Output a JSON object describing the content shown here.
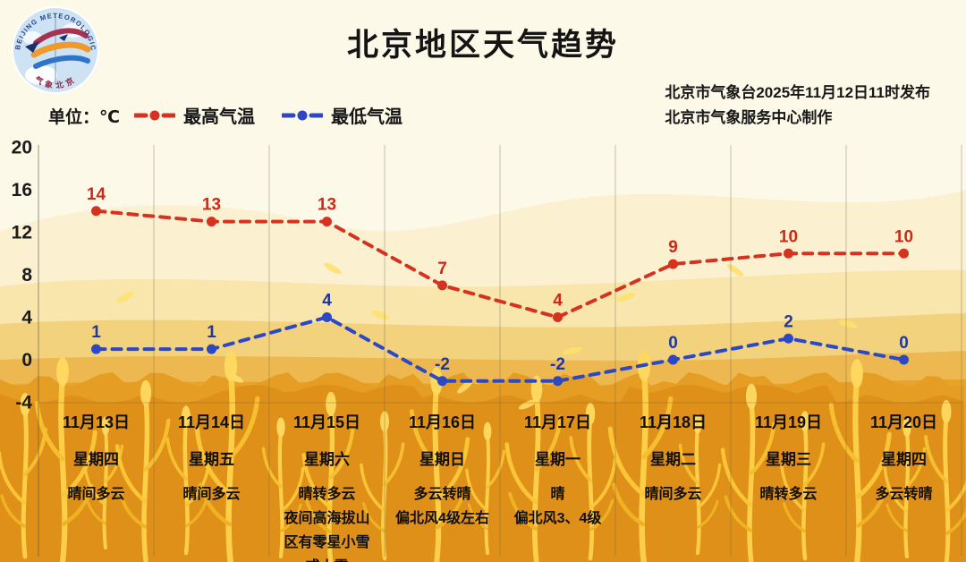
{
  "header": {
    "title": "北京地区天气趋势",
    "publisher_line1": "北京市气象台2025年11月12日11时发布",
    "publisher_line2": "北京市气象服务中心制作",
    "unit_label": "单位：℃"
  },
  "logo": {
    "text_top": "BEIJING METEOROLOGICAL SERVICE",
    "text_bottom": "气象北京"
  },
  "legend": [
    {
      "label": "最高气温",
      "color": "#d5321f"
    },
    {
      "label": "最低气温",
      "color": "#2c48c4"
    }
  ],
  "chart_data": {
    "type": "line",
    "title": "北京地区天气趋势",
    "ylabel": "℃",
    "ylim": [
      -4,
      20
    ],
    "yticks": [
      20,
      16,
      12,
      8,
      4,
      0,
      -4
    ],
    "grid": "vertical",
    "legend_position": "top",
    "categories": [
      "11月13日",
      "11月14日",
      "11月15日",
      "11月16日",
      "11月17日",
      "11月18日",
      "11月19日",
      "11月20日"
    ],
    "series": [
      {
        "name": "最高气温",
        "color": "#d5321f",
        "label_color": "#cc2a17",
        "line_style": "dashed",
        "values": [
          14,
          13,
          13,
          7,
          4,
          9,
          10,
          10
        ]
      },
      {
        "name": "最低气温",
        "color": "#2c48c4",
        "label_color": "#1f379e",
        "line_style": "dashed",
        "values": [
          1,
          1,
          4,
          -2,
          -2,
          0,
          2,
          0
        ]
      }
    ]
  },
  "days": [
    {
      "date": "11月13日",
      "weekday": "星期四",
      "weather": [
        "晴间多云"
      ]
    },
    {
      "date": "11月14日",
      "weekday": "星期五",
      "weather": [
        "晴间多云"
      ]
    },
    {
      "date": "11月15日",
      "weekday": "星期六",
      "weather": [
        "晴转多云",
        "夜间高海拔山",
        "区有零星小雪",
        "或小雪"
      ]
    },
    {
      "date": "11月16日",
      "weekday": "星期日",
      "weather": [
        "多云转晴",
        "偏北风4级左右"
      ]
    },
    {
      "date": "11月17日",
      "weekday": "星期一",
      "weather": [
        "晴",
        "偏北风3、4级"
      ]
    },
    {
      "date": "11月18日",
      "weekday": "星期二",
      "weather": [
        "晴间多云"
      ]
    },
    {
      "date": "11月19日",
      "weekday": "星期三",
      "weather": [
        "晴转多云"
      ]
    },
    {
      "date": "11月20日",
      "weekday": "星期四",
      "weather": [
        "多云转晴"
      ]
    }
  ]
}
